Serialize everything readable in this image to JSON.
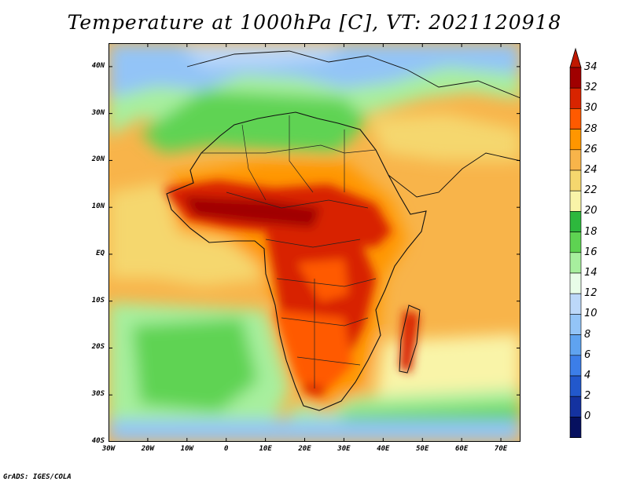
{
  "title": "Temperature at 1000hPa [C], VT: 2021120918",
  "footer": "GrADS: IGES/COLA",
  "map": {
    "lon_range": [
      -30,
      75
    ],
    "lat_range": [
      -40,
      45
    ],
    "lat_ticks": [
      {
        "value": 40,
        "label": "40N"
      },
      {
        "value": 30,
        "label": "30N"
      },
      {
        "value": 20,
        "label": "20N"
      },
      {
        "value": 10,
        "label": "10N"
      },
      {
        "value": 0,
        "label": "EQ"
      },
      {
        "value": -10,
        "label": "10S"
      },
      {
        "value": -20,
        "label": "20S"
      },
      {
        "value": -30,
        "label": "30S"
      },
      {
        "value": -40,
        "label": "40S"
      }
    ],
    "lon_ticks": [
      {
        "value": -30,
        "label": "30W"
      },
      {
        "value": -20,
        "label": "20W"
      },
      {
        "value": -10,
        "label": "10W"
      },
      {
        "value": 0,
        "label": "0"
      },
      {
        "value": 10,
        "label": "10E"
      },
      {
        "value": 20,
        "label": "20E"
      },
      {
        "value": 30,
        "label": "30E"
      },
      {
        "value": 40,
        "label": "40E"
      },
      {
        "value": 50,
        "label": "50E"
      },
      {
        "value": 60,
        "label": "60E"
      },
      {
        "value": 70,
        "label": "70E"
      }
    ]
  },
  "colorbar": {
    "levels": [
      "34",
      "32",
      "30",
      "28",
      "26",
      "24",
      "22",
      "20",
      "18",
      "16",
      "14",
      "12",
      "10",
      "8",
      "6",
      "4",
      "2",
      "0"
    ],
    "colors": [
      "#a00000",
      "#d82400",
      "#ff5a00",
      "#ff9600",
      "#f8b44a",
      "#f5d76e",
      "#f9f4a8",
      "#2db83d",
      "#5ed352",
      "#a7ef9e",
      "#e8fde8",
      "#bcd8f9",
      "#93c4f7",
      "#5fa3f0",
      "#3c7ee8",
      "#2258cc",
      "#1432a0",
      "#06105f"
    ],
    "top_arrow_color": "#c01800",
    "bottom_arrow_color": "#cfd0ff"
  }
}
